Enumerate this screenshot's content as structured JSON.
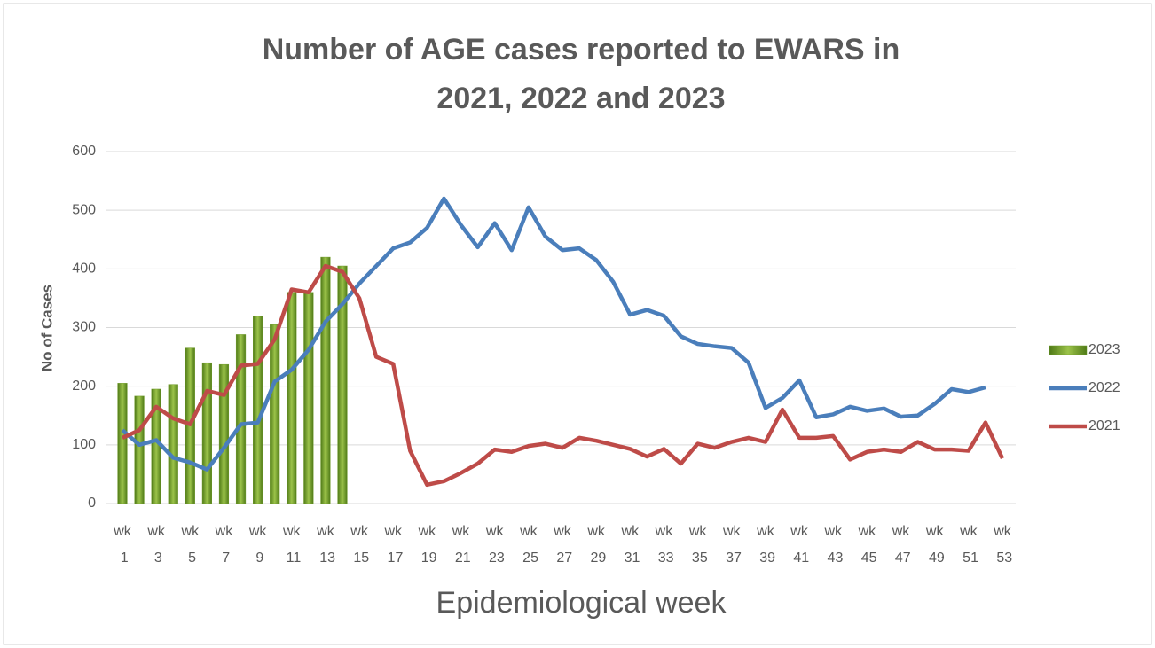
{
  "chart_data": {
    "type": "line",
    "title": [
      "Number of AGE cases reported to EWARS  in",
      "2021, 2022 and 2023"
    ],
    "x_label": "Epidemiological week",
    "y_label": "No of Cases",
    "categories": [
      "wk 1",
      null,
      "wk 3",
      null,
      "wk 5",
      null,
      "wk 7",
      null,
      "wk 9",
      null,
      "wk 11",
      null,
      "wk 13",
      null,
      "wk 15",
      null,
      "wk 17",
      null,
      "wk 19",
      null,
      "wk 21",
      null,
      "wk 23",
      null,
      "wk 25",
      null,
      "wk 27",
      null,
      "wk 29",
      null,
      "wk 31",
      null,
      "wk 33",
      null,
      "wk 35",
      null,
      "wk 37",
      null,
      "wk 39",
      null,
      "wk 41",
      null,
      "wk 43",
      null,
      "wk 45",
      null,
      "wk 47",
      null,
      "wk 49",
      null,
      "wk 51",
      null,
      "wk 53"
    ],
    "series": [
      {
        "name": "2023",
        "type": "bar",
        "color": "#6f9a2a",
        "values": [
          205,
          183,
          195,
          203,
          265,
          240,
          237,
          288,
          320,
          305,
          360,
          360,
          420,
          405,
          null,
          null,
          null,
          null,
          null,
          null,
          null,
          null,
          null,
          null,
          null,
          null,
          null,
          null,
          null,
          null,
          null,
          null,
          null,
          null,
          null,
          null,
          null,
          null,
          null,
          null,
          null,
          null,
          null,
          null,
          null,
          null,
          null,
          null,
          null,
          null,
          null,
          null,
          null
        ]
      },
      {
        "name": "2022",
        "type": "line",
        "color": "#4a7ebb",
        "values": [
          125,
          100,
          108,
          78,
          70,
          58,
          95,
          135,
          138,
          208,
          228,
          262,
          310,
          340,
          375,
          405,
          435,
          445,
          470,
          520,
          475,
          437,
          478,
          432,
          505,
          455,
          432,
          435,
          415,
          378,
          322,
          330,
          320,
          285,
          272,
          268,
          265,
          240,
          163,
          180,
          210,
          147,
          152,
          165,
          158,
          162,
          148,
          150,
          170,
          195,
          190,
          198,
          null
        ]
      },
      {
        "name": "2021",
        "type": "line",
        "color": "#be4b48",
        "values": [
          112,
          125,
          165,
          145,
          135,
          192,
          185,
          235,
          238,
          280,
          365,
          360,
          405,
          395,
          350,
          250,
          238,
          90,
          32,
          38,
          52,
          68,
          92,
          88,
          98,
          102,
          95,
          112,
          107,
          100,
          93,
          80,
          93,
          68,
          102,
          95,
          105,
          112,
          105,
          160,
          112,
          112,
          115,
          75,
          88,
          92,
          88,
          105,
          92,
          92,
          90,
          138,
          77
        ]
      }
    ],
    "ylim": [
      0,
      600
    ],
    "yticks": [
      0,
      100,
      200,
      300,
      400,
      500,
      600
    ],
    "grid": true,
    "legend": "right"
  }
}
